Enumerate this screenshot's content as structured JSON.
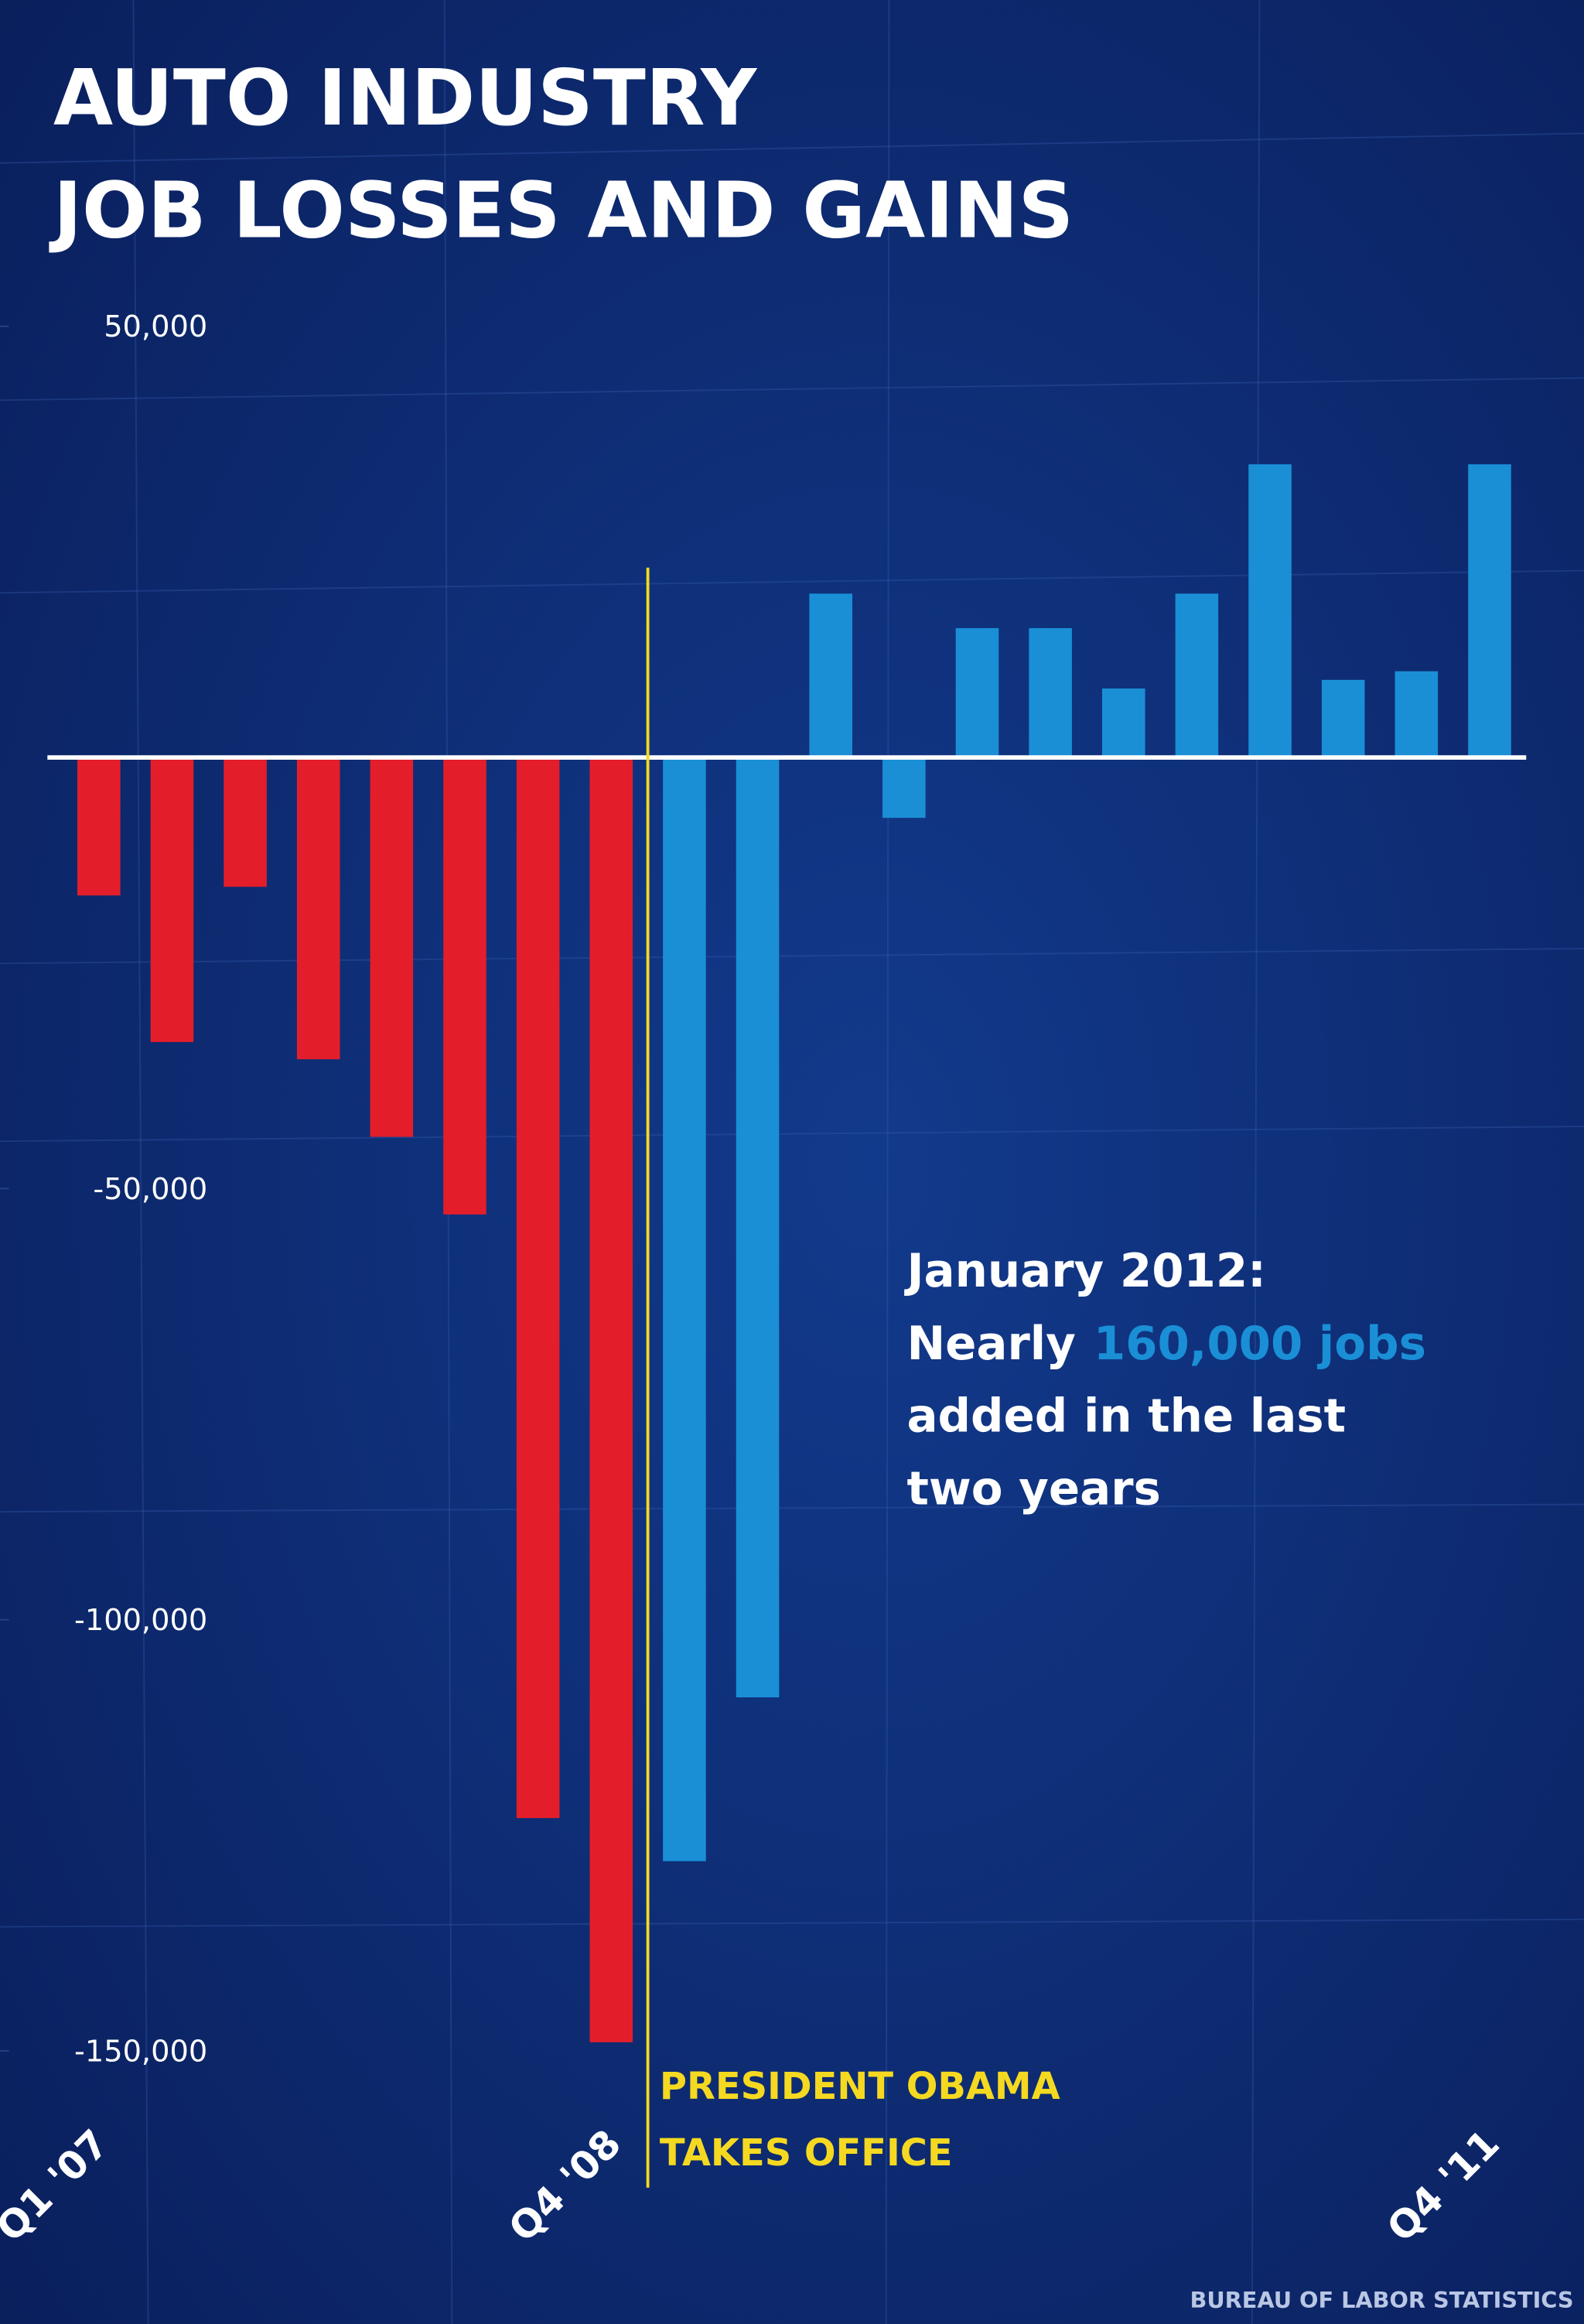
{
  "chart_data": {
    "type": "bar",
    "title": [
      "AUTO INDUSTRY",
      "JOB LOSSES AND GAINS"
    ],
    "categories": [
      "Q1 '07",
      null,
      null,
      null,
      null,
      null,
      null,
      "Q4 '08",
      null,
      null,
      null,
      null,
      null,
      null,
      null,
      null,
      null,
      null,
      null,
      "Q4 '11"
    ],
    "values": [
      -16000,
      -33000,
      -15000,
      -35000,
      -44000,
      -53000,
      -123000,
      -149000,
      -128000,
      -109000,
      19000,
      -7000,
      15000,
      15000,
      8000,
      19000,
      34000,
      9000,
      10000,
      34000
    ],
    "colors": [
      "#e31e2a",
      "#e31e2a",
      "#e31e2a",
      "#e31e2a",
      "#e31e2a",
      "#e31e2a",
      "#e31e2a",
      "#e31e2a",
      "#1a8fd6",
      "#1a8fd6",
      "#1a8fd6",
      "#1a8fd6",
      "#1a8fd6",
      "#1a8fd6",
      "#1a8fd6",
      "#1a8fd6",
      "#1a8fd6",
      "#1a8fd6",
      "#1a8fd6",
      "#1a8fd6"
    ],
    "ylim": [
      -165000,
      60000
    ],
    "yticks": [
      {
        "value": 50000,
        "label": "50,000"
      },
      {
        "value": -50000,
        "label": "-50,000"
      },
      {
        "value": -100000,
        "label": "-100,000"
      },
      {
        "value": -150000,
        "label": "-150,000"
      }
    ],
    "event": {
      "text": [
        "PRESIDENT OBAMA",
        "TAKES OFFICE"
      ],
      "color": "#f5d921"
    },
    "annotation": {
      "line1": "January 2012:",
      "line2": "Nearly",
      "highlight": "160,000 jobs",
      "line3": "added in the last",
      "line4": "two years",
      "highlight_color": "#1a8fd6"
    },
    "source": "BUREAU OF LABOR STATISTICS"
  }
}
